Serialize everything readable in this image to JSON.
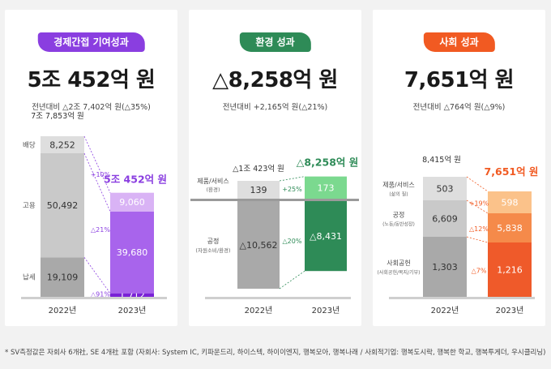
{
  "colors": {
    "purple": "#8a3ee0",
    "green": "#2e8b57",
    "orange": "#f15a22",
    "gray_dark": "#a9a9a9",
    "gray_mid": "#c9c9c9",
    "gray_light": "#dedede"
  },
  "panels": [
    {
      "title": "경제간접 기여성과",
      "total": "5조 452억 원",
      "change": "전년대비 △2조 7,402억 원(△35%)"
    },
    {
      "title": "환경 성과",
      "total": "△8,258억 원",
      "change": "전년대비 +2,165억 원(△21%)"
    },
    {
      "title": "사회 성과",
      "total": "7,651억 원",
      "change": "전년대비 △764억 원(△9%)"
    }
  ],
  "footnote": "* SV측정값은 자회사 6개社, SE 4개社 포함 (자회사: System IC, 키파운드리, 하이스텍, 하이이엔지, 행복모아, 행복나래 / 사회적기업: 행복도시락, 행복한 학교, 행복투게더, 우시클리닝)",
  "chart_data": [
    {
      "type": "bar",
      "stacked": true,
      "categories": [
        "2022년",
        "2023년"
      ],
      "series": [
        {
          "name": "배당",
          "values": [
            8252,
            9060
          ],
          "labels": [
            "8,252",
            "9,060"
          ],
          "change": "+10%"
        },
        {
          "name": "고용",
          "values": [
            50492,
            39680
          ],
          "labels": [
            "50,492",
            "39,680"
          ],
          "change": "△21%"
        },
        {
          "name": "납세",
          "values": [
            19109,
            1712
          ],
          "labels": [
            "19,109",
            "1,712"
          ],
          "change": "△91%"
        }
      ],
      "totals": [
        "7조 7,853억 원",
        "5조 452억 원"
      ]
    },
    {
      "type": "bar",
      "stacked": true,
      "categories": [
        "2022년",
        "2023년"
      ],
      "series": [
        {
          "name": "제품/서비스",
          "subname": "(환경)",
          "values": [
            139,
            173
          ],
          "labels": [
            "139",
            "173"
          ],
          "change": "+25%"
        },
        {
          "name": "공정",
          "subname": "(자원소비/환경)",
          "values": [
            -10562,
            -8431
          ],
          "labels": [
            "△10,562",
            "△8,431"
          ],
          "change": "△20%"
        }
      ],
      "totals": [
        "△1조 423억 원",
        "△8,258억 원"
      ]
    },
    {
      "type": "bar",
      "stacked": true,
      "categories": [
        "2022년",
        "2023년"
      ],
      "series": [
        {
          "name": "제품/서비스",
          "subname": "(삶의 질)",
          "values": [
            503,
            598
          ],
          "labels": [
            "503",
            "598"
          ],
          "change": "+19%"
        },
        {
          "name": "공정",
          "subname": "(노동/동반성장)",
          "values": [
            6609,
            5838
          ],
          "labels": [
            "6,609",
            "5,838"
          ],
          "change": "△12%"
        },
        {
          "name": "사회공헌",
          "subname": "(사회공헌/복지/기부)",
          "values": [
            1303,
            1216
          ],
          "labels": [
            "1,303",
            "1,216"
          ],
          "change": "△7%"
        }
      ],
      "totals": [
        "8,415억 원",
        "7,651억 원"
      ]
    }
  ]
}
